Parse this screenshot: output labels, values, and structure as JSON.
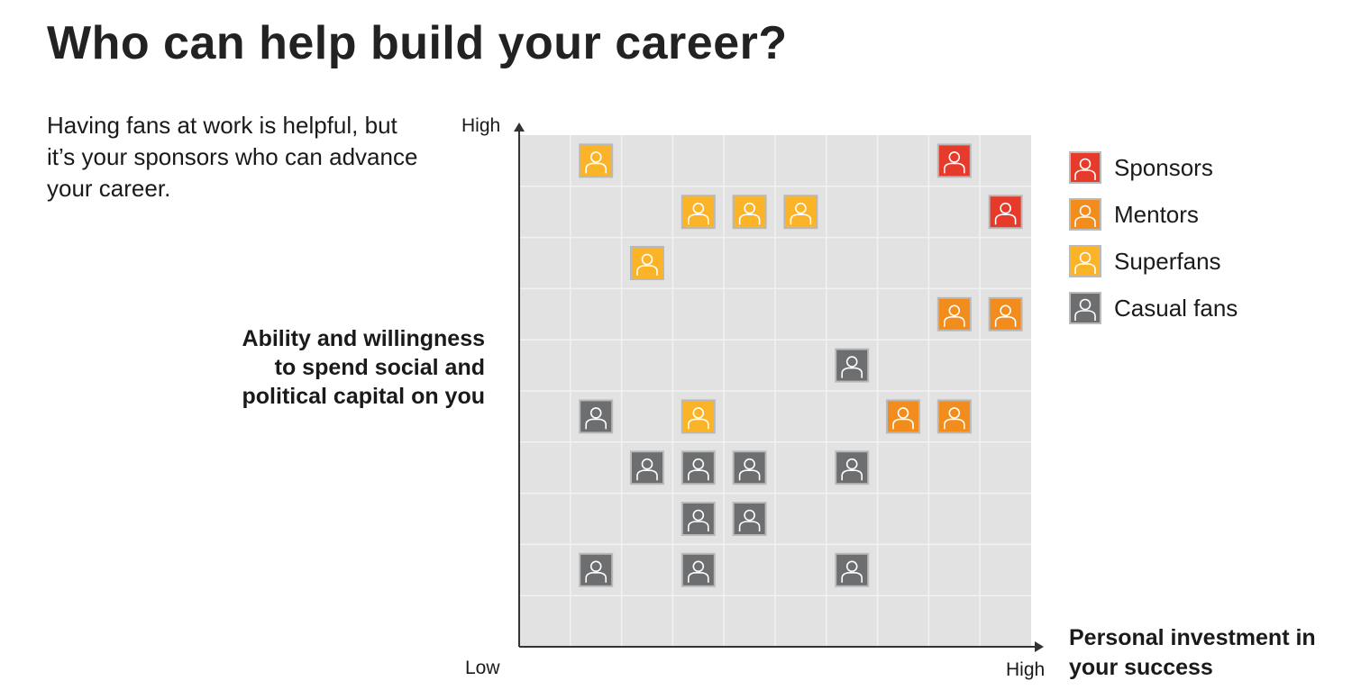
{
  "title": "Who can help build your career?",
  "intro": "Having fans at work is helpful, but it’s your sponsors who can advance your career.",
  "chart_data": {
    "type": "scatter",
    "xlabel": "Personal investment in your success",
    "ylabel": "Ability and willingness to spend social and political capital on you",
    "x_ticks": {
      "low": "Low",
      "high": "High"
    },
    "y_ticks": {
      "high": "High"
    },
    "grid": true,
    "xlim": [
      0,
      10
    ],
    "ylim": [
      0,
      10
    ],
    "legend_position": "right",
    "categories": [
      {
        "key": "sponsors",
        "name": "Sponsors",
        "color": "#e63a2a"
      },
      {
        "key": "mentors",
        "name": "Mentors",
        "color": "#f28c1c"
      },
      {
        "key": "superfans",
        "name": "Superfans",
        "color": "#fbb327"
      },
      {
        "key": "casual",
        "name": "Casual fans",
        "color": "#6d6e70"
      }
    ],
    "points": [
      {
        "x": 1,
        "y": 9,
        "type": "superfans"
      },
      {
        "x": 8,
        "y": 9,
        "type": "sponsors"
      },
      {
        "x": 3,
        "y": 8,
        "type": "superfans"
      },
      {
        "x": 4,
        "y": 8,
        "type": "superfans"
      },
      {
        "x": 5,
        "y": 8,
        "type": "superfans"
      },
      {
        "x": 9,
        "y": 8,
        "type": "sponsors"
      },
      {
        "x": 2,
        "y": 7,
        "type": "superfans"
      },
      {
        "x": 8,
        "y": 6,
        "type": "mentors"
      },
      {
        "x": 9,
        "y": 6,
        "type": "mentors"
      },
      {
        "x": 6,
        "y": 5,
        "type": "casual"
      },
      {
        "x": 1,
        "y": 4,
        "type": "casual"
      },
      {
        "x": 3,
        "y": 4,
        "type": "superfans"
      },
      {
        "x": 7,
        "y": 4,
        "type": "mentors"
      },
      {
        "x": 8,
        "y": 4,
        "type": "mentors"
      },
      {
        "x": 2,
        "y": 3,
        "type": "casual"
      },
      {
        "x": 3,
        "y": 3,
        "type": "casual"
      },
      {
        "x": 4,
        "y": 3,
        "type": "casual"
      },
      {
        "x": 6,
        "y": 3,
        "type": "casual"
      },
      {
        "x": 3,
        "y": 2,
        "type": "casual"
      },
      {
        "x": 4,
        "y": 2,
        "type": "casual"
      },
      {
        "x": 1,
        "y": 1,
        "type": "casual"
      },
      {
        "x": 3,
        "y": 1,
        "type": "casual"
      },
      {
        "x": 6,
        "y": 1,
        "type": "casual"
      }
    ]
  }
}
